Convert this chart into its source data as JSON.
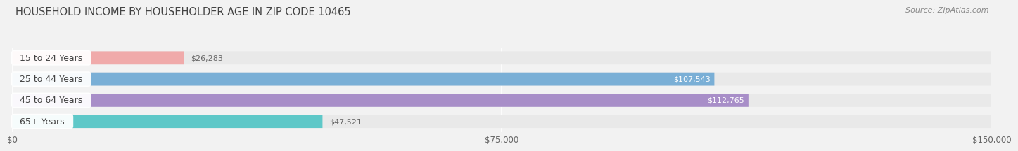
{
  "title": "HOUSEHOLD INCOME BY HOUSEHOLDER AGE IN ZIP CODE 10465",
  "source": "Source: ZipAtlas.com",
  "categories": [
    "15 to 24 Years",
    "25 to 44 Years",
    "45 to 64 Years",
    "65+ Years"
  ],
  "values": [
    26283,
    107543,
    112765,
    47521
  ],
  "bar_colors": [
    "#f0aaaa",
    "#7aafd6",
    "#a88ec8",
    "#5ec8c8"
  ],
  "label_colors": [
    "#555555",
    "#ffffff",
    "#ffffff",
    "#555555"
  ],
  "max_value": 150000,
  "xticks": [
    0,
    75000,
    150000
  ],
  "xtick_labels": [
    "$0",
    "$75,000",
    "$150,000"
  ],
  "bg_color": "#f2f2f2",
  "bar_bg_color": "#e9e9e9",
  "row_bg_color": "#ebebeb",
  "title_fontsize": 10.5,
  "source_fontsize": 8,
  "value_fontsize": 8,
  "category_fontsize": 9,
  "tick_fontsize": 8.5
}
